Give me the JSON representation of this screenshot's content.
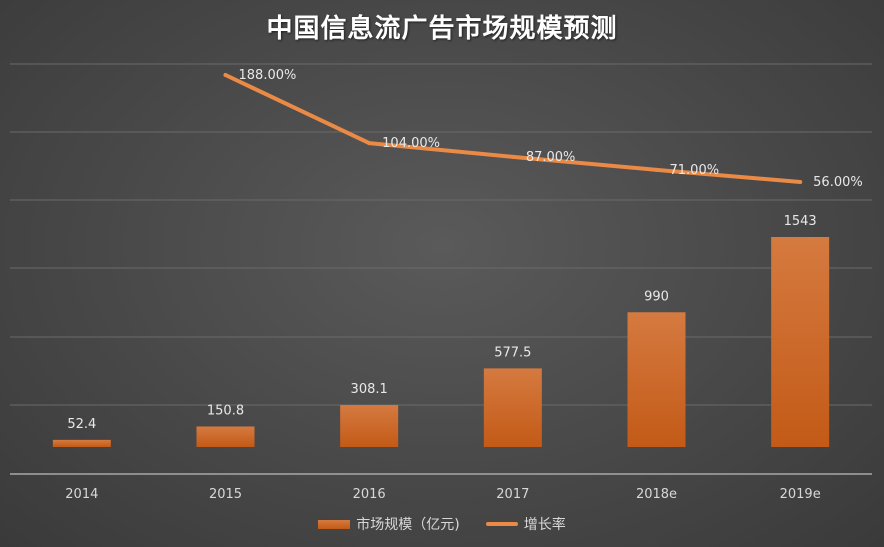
{
  "chart_data": {
    "type": "bar+line",
    "title": "中国信息流广告市场规模预测",
    "categories": [
      "2014",
      "2015",
      "2016",
      "2017",
      "2018e",
      "2019e"
    ],
    "series": [
      {
        "name": "市场规模（亿元)",
        "type": "bar",
        "values": [
          52.4,
          150.8,
          308.1,
          577.5,
          990,
          1543
        ],
        "labels": [
          "52.4",
          "150.8",
          "308.1",
          "577.5",
          "990",
          "1543"
        ]
      },
      {
        "name": "增长率",
        "type": "line",
        "values": [
          null,
          188.0,
          104.0,
          87.0,
          71.0,
          56.0
        ],
        "labels": [
          "",
          "188.00%",
          "104.00%",
          "87.00%",
          "71.00%",
          "56.00%"
        ]
      }
    ],
    "colors": {
      "bar": "#c35a17",
      "bar_light": "#d57a40",
      "line": "#ea8a45"
    },
    "grid": true,
    "legend_position": "bottom"
  }
}
